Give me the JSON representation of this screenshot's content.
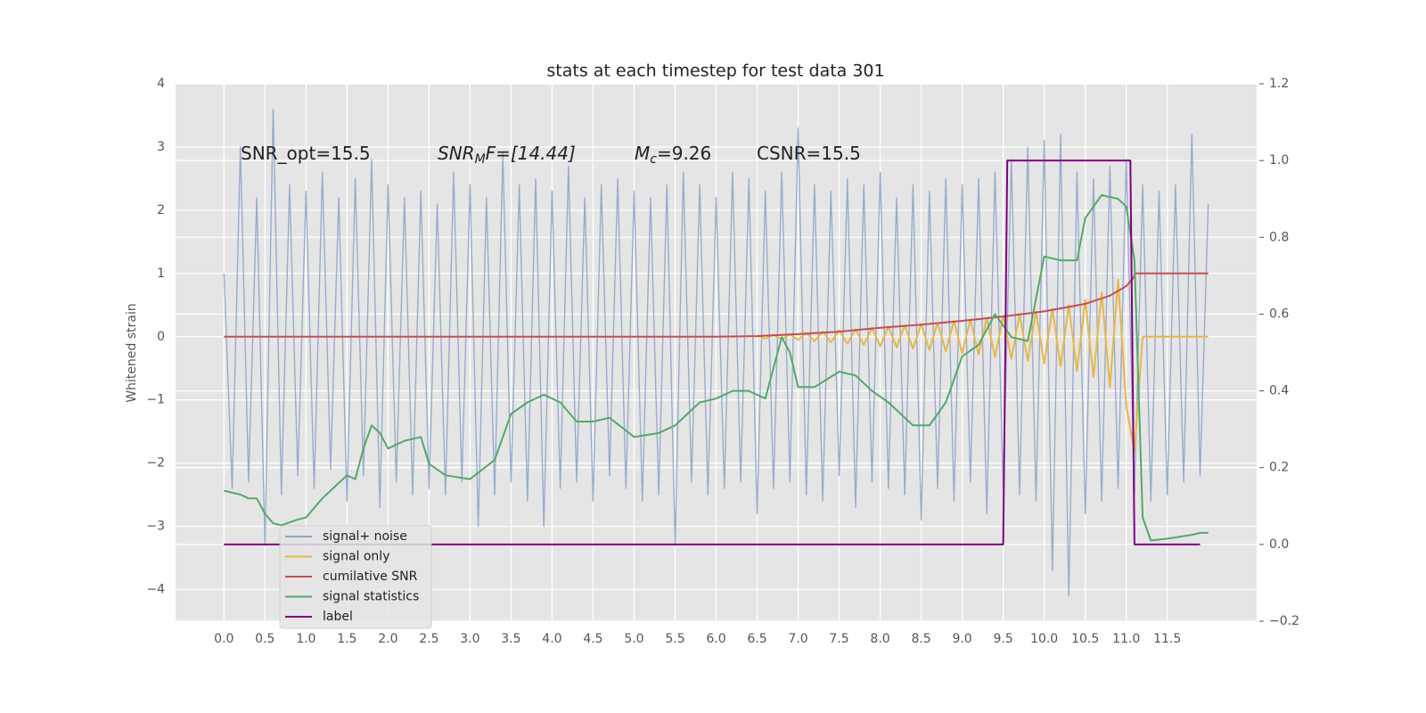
{
  "chart_data": {
    "type": "line",
    "title": "stats at each timestep for test data 301",
    "ylabel": "Whitened strain",
    "xlim": [
      -0.59,
      12.59
    ],
    "ylim": [
      -4.5,
      4
    ],
    "y2lim": [
      -0.2,
      1.2
    ],
    "xticks": [
      {
        "value": 0,
        "label": "0.0"
      },
      0.5,
      {
        "value": 1,
        "label": "1.0"
      },
      1.5,
      {
        "value": 2,
        "label": "2.0"
      },
      2.5,
      {
        "value": 3,
        "label": "3.0"
      },
      3.5,
      {
        "value": 4,
        "label": "4.0"
      },
      4.5,
      {
        "value": 5,
        "label": "5.0"
      },
      5.5,
      {
        "value": 6,
        "label": "6.0"
      },
      6.5,
      {
        "value": 7,
        "label": "7.0"
      },
      7.5,
      {
        "value": 8,
        "label": "8.0"
      },
      8.5,
      {
        "value": 9,
        "label": "9.0"
      },
      9.5,
      {
        "value": 10,
        "label": "10.0"
      },
      10.5,
      {
        "value": 11,
        "label": "11.0"
      },
      11.5
    ],
    "yticks": [
      {
        "value": -4,
        "label": "−4"
      },
      {
        "value": -3,
        "label": "−3"
      },
      {
        "value": -2,
        "label": "−2"
      },
      {
        "value": -1,
        "label": "−1"
      },
      0,
      1,
      2,
      3,
      4
    ],
    "y2ticks": [
      {
        "value": -0.2,
        "label": "−0.2"
      },
      {
        "value": 0,
        "label": "0.0"
      },
      0.2,
      0.4,
      0.6,
      0.8,
      {
        "value": 1,
        "label": "1.0"
      },
      1.2
    ],
    "grid": true,
    "legend": "lower left",
    "annotations": [
      {
        "parts": [
          "SNR_opt=15.5"
        ]
      },
      {
        "parts": [
          "SNR",
          "M",
          "F=[14.44]"
        ]
      },
      {
        "parts": [
          "M",
          "c",
          "=9.26"
        ]
      },
      {
        "parts": [
          "CSNR=15.5"
        ]
      }
    ],
    "series": [
      {
        "name": "signal+ noise",
        "color": "#8fa5cc",
        "x": [
          0,
          0.1,
          0.2,
          0.3,
          0.4,
          0.5,
          0.6,
          0.7,
          0.8,
          0.9,
          1,
          1.1,
          1.2,
          1.3,
          1.4,
          1.5,
          1.6,
          1.7,
          1.8,
          1.9,
          2,
          2.1,
          2.2,
          2.3,
          2.4,
          2.5,
          2.6,
          2.7,
          2.8,
          2.9,
          3,
          3.1,
          3.2,
          3.3,
          3.4,
          3.5,
          3.6,
          3.7,
          3.8,
          3.9,
          4,
          4.1,
          4.2,
          4.3,
          4.4,
          4.5,
          4.6,
          4.7,
          4.8,
          4.9,
          5,
          5.1,
          5.2,
          5.3,
          5.4,
          5.5,
          5.6,
          5.7,
          5.8,
          5.9,
          6,
          6.1,
          6.2,
          6.3,
          6.4,
          6.5,
          6.6,
          6.7,
          6.8,
          6.9,
          7,
          7.1,
          7.2,
          7.3,
          7.4,
          7.5,
          7.6,
          7.7,
          7.8,
          7.9,
          8,
          8.1,
          8.2,
          8.3,
          8.4,
          8.5,
          8.6,
          8.7,
          8.8,
          8.9,
          9,
          9.1,
          9.2,
          9.3,
          9.4,
          9.5,
          9.6,
          9.7,
          9.8,
          9.9,
          10,
          10.1,
          10.2,
          10.3,
          10.4,
          10.5,
          10.6,
          10.7,
          10.8,
          10.9,
          11,
          11.1,
          11.2,
          11.3,
          11.4,
          11.5,
          11.6,
          11.7,
          11.8,
          11.9,
          12
        ],
        "values": [
          1.0,
          -2.4,
          3.0,
          -2.3,
          2.2,
          -3.3,
          3.6,
          -2.5,
          2.4,
          -2.2,
          2.3,
          -2.4,
          2.6,
          -2.1,
          2.2,
          -2.6,
          2.5,
          -2.2,
          2.8,
          -2.7,
          2.4,
          -2.3,
          2.2,
          -2.5,
          2.3,
          -2.4,
          2.1,
          -2.5,
          2.6,
          -2.3,
          2.4,
          -3.0,
          2.2,
          -2.5,
          2.9,
          -2.3,
          2.4,
          -2.6,
          2.5,
          -3.0,
          2.3,
          -2.4,
          2.7,
          -2.3,
          2.2,
          -2.6,
          2.4,
          -2.2,
          2.5,
          -2.4,
          2.3,
          -2.6,
          2.2,
          -2.5,
          2.4,
          -3.3,
          2.6,
          -2.3,
          2.4,
          -2.5,
          2.2,
          -2.4,
          2.6,
          -2.3,
          2.5,
          -2.8,
          2.3,
          -2.4,
          2.6,
          -2.3,
          3.3,
          -2.5,
          2.4,
          -2.6,
          2.3,
          -2.2,
          2.5,
          -2.7,
          2.4,
          -2.3,
          2.6,
          -2.4,
          2.2,
          -2.5,
          2.4,
          -2.9,
          2.3,
          -2.4,
          2.5,
          -2.6,
          2.4,
          -2.3,
          2.5,
          -2.8,
          2.6,
          -2.4,
          2.8,
          -2.5,
          3.0,
          -2.6,
          3.1,
          -3.7,
          3.2,
          -4.1,
          2.6,
          -2.8,
          2.5,
          -2.6,
          2.7,
          -2.4,
          2.8,
          -2.5,
          2.4,
          -2.6,
          2.3,
          -2.5,
          2.4,
          -2.3,
          3.2,
          -2.2,
          2.1
        ]
      },
      {
        "name": "signal only",
        "color": "#e8b64a",
        "x": [
          6.5,
          6.6,
          6.7,
          6.8,
          6.9,
          7,
          7.1,
          7.2,
          7.3,
          7.4,
          7.5,
          7.6,
          7.7,
          7.8,
          7.9,
          8,
          8.1,
          8.2,
          8.3,
          8.4,
          8.5,
          8.6,
          8.7,
          8.8,
          8.9,
          9,
          9.1,
          9.2,
          9.3,
          9.4,
          9.5,
          9.6,
          9.7,
          9.8,
          9.9,
          10,
          10.1,
          10.2,
          10.3,
          10.4,
          10.5,
          10.6,
          10.7,
          10.8,
          10.9,
          11,
          11.1,
          11.2,
          12
        ],
        "values": [
          0.02,
          -0.03,
          0.03,
          -0.04,
          0.04,
          -0.05,
          0.06,
          -0.07,
          0.08,
          -0.09,
          0.1,
          -0.11,
          0.12,
          -0.13,
          0.14,
          -0.15,
          0.16,
          -0.17,
          0.18,
          -0.19,
          0.2,
          -0.21,
          0.22,
          -0.23,
          0.25,
          -0.26,
          0.27,
          -0.28,
          0.3,
          -0.32,
          0.33,
          -0.35,
          0.36,
          -0.38,
          0.4,
          -0.42,
          0.44,
          -0.47,
          0.5,
          -0.54,
          0.58,
          -0.64,
          0.7,
          -0.8,
          0.9,
          -1.1,
          -1.8,
          0,
          0
        ]
      },
      {
        "name": "cumilative SNR",
        "color": "#c44e52",
        "x": [
          0,
          6,
          6.5,
          7,
          7.5,
          8,
          8.5,
          9,
          9.5,
          10,
          10.5,
          10.8,
          11,
          11.1,
          11.1,
          12
        ],
        "values": [
          0,
          0,
          0.01,
          0.04,
          0.08,
          0.14,
          0.19,
          0.25,
          0.32,
          0.4,
          0.52,
          0.65,
          0.8,
          0.95,
          1.0,
          1.0
        ]
      },
      {
        "name": "signal statistics",
        "color": "#55a868",
        "axis": "y2",
        "x": [
          0,
          0.2,
          0.3,
          0.4,
          0.5,
          0.6,
          0.7,
          0.9,
          1,
          1.2,
          1.5,
          1.6,
          1.7,
          1.8,
          1.9,
          2,
          2.2,
          2.4,
          2.5,
          2.7,
          3,
          3.3,
          3.5,
          3.7,
          3.9,
          4.1,
          4.3,
          4.5,
          4.7,
          5,
          5.3,
          5.5,
          5.8,
          6,
          6.2,
          6.4,
          6.6,
          6.8,
          6.9,
          7,
          7.2,
          7.5,
          7.7,
          7.9,
          8.1,
          8.4,
          8.6,
          8.8,
          9,
          9.2,
          9.4,
          9.6,
          9.8,
          10,
          10.2,
          10.4,
          10.5,
          10.7,
          10.9,
          11,
          11.1,
          11.2,
          11.3,
          11.5,
          11.8,
          11.9,
          12
        ],
        "values": [
          0.14,
          0.13,
          0.12,
          0.12,
          0.08,
          0.055,
          0.05,
          0.065,
          0.07,
          0.12,
          0.18,
          0.17,
          0.25,
          0.31,
          0.29,
          0.25,
          0.27,
          0.28,
          0.21,
          0.18,
          0.17,
          0.22,
          0.34,
          0.37,
          0.39,
          0.37,
          0.32,
          0.32,
          0.33,
          0.28,
          0.29,
          0.31,
          0.37,
          0.38,
          0.4,
          0.4,
          0.38,
          0.54,
          0.5,
          0.41,
          0.41,
          0.45,
          0.44,
          0.4,
          0.37,
          0.31,
          0.31,
          0.37,
          0.49,
          0.52,
          0.6,
          0.54,
          0.53,
          0.75,
          0.74,
          0.74,
          0.85,
          0.91,
          0.9,
          0.88,
          0.74,
          0.07,
          0.01,
          0.015,
          0.025,
          0.03,
          0.03
        ]
      },
      {
        "name": "label",
        "color": "#800080",
        "axis": "y2",
        "x": [
          0,
          9.5,
          9.55,
          11.05,
          11.1,
          11.9
        ],
        "values": [
          0,
          0,
          1,
          1,
          0,
          0
        ]
      }
    ]
  }
}
